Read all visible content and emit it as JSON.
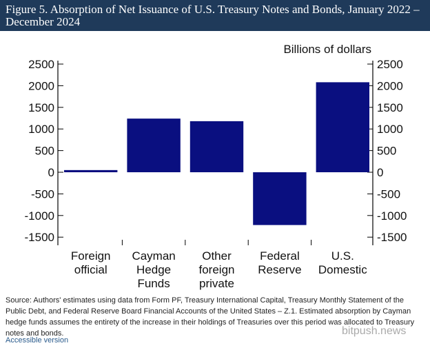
{
  "title": "Figure 5. Absorption of Net Issuance of U.S. Treasury Notes and Bonds, January 2022 – December 2024",
  "chart_data": {
    "type": "bar",
    "title": "Figure 5. Absorption of Net Issuance of U.S. Treasury Notes and Bonds, January 2022 – December 2024",
    "ylabel": "Billions of dollars",
    "categories": [
      [
        "Foreign",
        "official"
      ],
      [
        "Cayman",
        "Hedge",
        "Funds"
      ],
      [
        "Other",
        "foreign",
        "private"
      ],
      [
        "Federal",
        "Reserve"
      ],
      [
        "U.S.",
        "Domestic"
      ]
    ],
    "values": [
      50,
      1240,
      1180,
      -1220,
      2080
    ],
    "ylim": [
      -1700,
      2700
    ],
    "yticks": [
      2500,
      2000,
      1500,
      1000,
      500,
      0,
      -500,
      -1000,
      -1500
    ],
    "grid": false,
    "bar_color": "#0a0f80"
  },
  "source": "Source: Authors' estimates using data from Form PF, Treasury International Capital, Treasury Monthly Statement of the Public Debt, and Federal Reserve Board Financial Accounts of the United States – Z.1. Estimated absorption by Cayman hedge funds assumes the entirety of the increase in their holdings of Treasuries over this period was allocated to Treasury notes and bonds.",
  "accessible_link": "Accessible version",
  "watermark": "bitpush.news"
}
